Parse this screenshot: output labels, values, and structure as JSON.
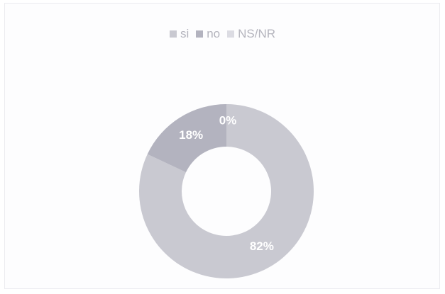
{
  "chart_data": {
    "type": "pie",
    "donut": true,
    "categories": [
      "si",
      "no",
      "NS/NR"
    ],
    "values": [
      82,
      18,
      0
    ],
    "data_labels": [
      "82%",
      "18%",
      "0%"
    ],
    "colors": [
      "#c9c9d1",
      "#b3b3bf",
      "#dcdce3"
    ],
    "legend_position": "top",
    "title": "",
    "legend": [
      {
        "label": "si",
        "color": "#c9c9d1"
      },
      {
        "label": "no",
        "color": "#b3b3bf"
      },
      {
        "label": "NS/NR",
        "color": "#dcdce3"
      }
    ]
  }
}
